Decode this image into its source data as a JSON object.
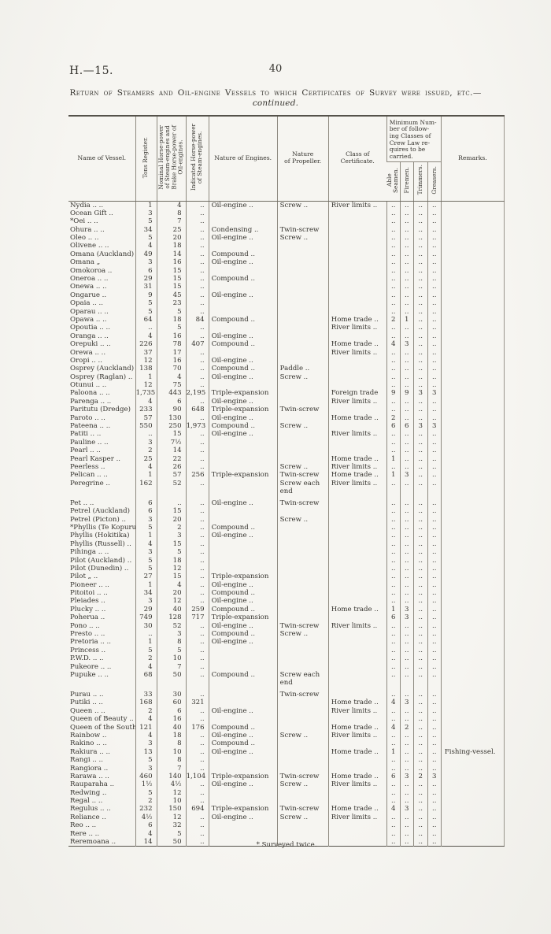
{
  "page": {
    "doc_ref": "H.—15.",
    "page_number": "40",
    "title_line1": "Return of Steamers and Oil-engine Vessels to which Certificates of Survey were",
    "title_line2_caps": "issued, etc.",
    "title_line2_italic": "—continued.",
    "footnote": "* Surveyed twice."
  },
  "table": {
    "headers": {
      "name": "Name of Vessel.",
      "tons": "Tons Register.",
      "nhp": "Nominal Horse-power\nof Steam-engines and\nBrake Horse-power of\nOil-engines.",
      "ihp": "Indicated Horse-power\nof Steam-engines.",
      "engines": "Nature of Engines.",
      "propeller": "Nature\nof Propeller.",
      "cert": "Class of\nCertificate.",
      "crew_group": "Minimum Num-\nber of follow-\ning Classes of\nCrew Law re-\nquires to be\ncarried.",
      "able_seamen": "Able\nSeamen.",
      "firemen": "Firemen.",
      "trimmers": "Trimmers.",
      "greasers": "Greasers.",
      "remarks": "Remarks."
    },
    "rows": [
      [
        "Nydia .. ..",
        "1",
        "4",
        "..",
        "Oil-engine ..",
        "Screw ..",
        "River limits ..",
        "..",
        "..",
        "..",
        "..",
        ""
      ],
      [
        "Ocean Gift ..",
        "3",
        "8",
        "..",
        "„",
        "„",
        "„",
        "..",
        "..",
        "..",
        "..",
        ""
      ],
      [
        "*Oei .. ..",
        "5",
        "7",
        "..",
        "„",
        "„",
        "„",
        "..",
        "..",
        "..",
        "..",
        ""
      ],
      [
        "Ohura .. ..",
        "34",
        "25",
        "..",
        "Condensing ..",
        "Twin-screw",
        "„",
        "..",
        "..",
        "..",
        "..",
        ""
      ],
      [
        "Oleo .. ..",
        "5",
        "20",
        "..",
        "Oil-engine ..",
        "Screw ..",
        "„",
        "..",
        "..",
        "..",
        "..",
        ""
      ],
      [
        "Olivene .. ..",
        "4",
        "18",
        "..",
        "„",
        "„",
        "„",
        "..",
        "..",
        "..",
        "..",
        ""
      ],
      [
        "Omana (Auckland)",
        "49",
        "14",
        "..",
        "Compound ..",
        "„",
        "„",
        "..",
        "..",
        "..",
        "..",
        ""
      ],
      [
        "Omana „",
        "3",
        "16",
        "..",
        "Oil-engine ..",
        "„",
        "„",
        "..",
        "..",
        "..",
        "..",
        ""
      ],
      [
        "Omokoroa ..",
        "6",
        "15",
        "..",
        "„",
        "„",
        "„",
        "..",
        "..",
        "..",
        "..",
        ""
      ],
      [
        "Oneroa .. ..",
        "29",
        "15",
        "..",
        "Compound ..",
        "„",
        "„",
        "..",
        "..",
        "..",
        "..",
        ""
      ],
      [
        "Onewa .. ..",
        "31",
        "15",
        "..",
        "„",
        "„",
        "„",
        "..",
        "..",
        "..",
        "..",
        ""
      ],
      [
        "Ongarue ..",
        "9",
        "45",
        "..",
        "Oil-engine ..",
        "„",
        "„",
        "..",
        "..",
        "..",
        "..",
        ""
      ],
      [
        "Opaia .. ..",
        "5",
        "23",
        "..",
        "„",
        "„",
        "„",
        "..",
        "..",
        "..",
        "..",
        ""
      ],
      [
        "Oparau .. ..",
        "5",
        "5",
        "..",
        "„",
        "„",
        "„",
        "..",
        "..",
        "..",
        "..",
        ""
      ],
      [
        "Opawa .. ..",
        "64",
        "18",
        "84",
        "Compound ..",
        "„",
        "Home trade ..",
        "2",
        "1",
        "..",
        "..",
        ""
      ],
      [
        "Opoutia .. ..",
        "..",
        "5",
        "..",
        "„",
        "„",
        "River limits ..",
        "..",
        "..",
        "..",
        "..",
        ""
      ],
      [
        "Oranga .. ..",
        "4",
        "16",
        "..",
        "Oil-engine ..",
        "„",
        "„",
        "..",
        "..",
        "..",
        "..",
        ""
      ],
      [
        "Orepuki .. ..",
        "226",
        "78",
        "407",
        "Compound ..",
        "„",
        "Home trade ..",
        "4",
        "3",
        "..",
        "..",
        ""
      ],
      [
        "Orewa .. ..",
        "37",
        "17",
        "..",
        "„",
        "„",
        "River limits ..",
        "..",
        "..",
        "..",
        "..",
        ""
      ],
      [
        "Oropi .. ..",
        "12",
        "16",
        "..",
        "Oil-engine ..",
        "„",
        "„",
        "..",
        "..",
        "..",
        "..",
        ""
      ],
      [
        "Osprey (Auckland)",
        "138",
        "70",
        "..",
        "Compound ..",
        "Paddle ..",
        "„",
        "..",
        "..",
        "..",
        "..",
        ""
      ],
      [
        "Osprey (Raglan) ..",
        "1",
        "4",
        "..",
        "Oil-engine ..",
        "Screw ..",
        "„",
        "..",
        "..",
        "..",
        "..",
        ""
      ],
      [
        "Otunui .. ..",
        "12",
        "75",
        "..",
        "„",
        "„",
        "„",
        "..",
        "..",
        "..",
        "..",
        ""
      ],
      [
        "Paloona .. ..",
        "1,735",
        "443",
        "2,195",
        "Triple-expansion",
        "„",
        "Foreign trade",
        "9",
        "9",
        "3",
        "3",
        ""
      ],
      [
        "Parenga .. ..",
        "4",
        "6",
        "..",
        "Oil-engine ..",
        "„",
        "River limits ..",
        "..",
        "..",
        "..",
        "..",
        ""
      ],
      [
        "Paritutu (Dredge)",
        "233",
        "90",
        "648",
        "Triple-expansion",
        "Twin-screw",
        "„",
        "..",
        "..",
        "..",
        "..",
        ""
      ],
      [
        "Paroto .. ..",
        "57",
        "130",
        "..",
        "Oil-engine ..",
        "„",
        "Home trade ..",
        "2",
        "..",
        "..",
        "..",
        ""
      ],
      [
        "Pateena .. ..",
        "550",
        "250",
        "1,973",
        "Compound ..",
        "Screw ..",
        "„",
        "6",
        "6",
        "3",
        "3",
        ""
      ],
      [
        "Patiti .. ..",
        "..",
        "15",
        "..",
        "Oil-engine ..",
        "„",
        "River limits ..",
        "..",
        "..",
        "..",
        "..",
        ""
      ],
      [
        "Pauline .. ..",
        "3",
        "7½",
        "..",
        "„",
        "„",
        "„",
        "..",
        "..",
        "..",
        "..",
        ""
      ],
      [
        "Pearl .. ..",
        "2",
        "14",
        "..",
        "„",
        "„",
        "„",
        "..",
        "..",
        "..",
        "..",
        ""
      ],
      [
        "Pearl Kasper ..",
        "25",
        "22",
        "..",
        "„",
        "„",
        "Home trade ..",
        "1",
        "..",
        "..",
        "..",
        ""
      ],
      [
        "Peerless ..",
        "4",
        "26",
        "..",
        "„",
        "Screw ..",
        "River limits ..",
        "..",
        "..",
        "..",
        "..",
        ""
      ],
      [
        "Pelican .. ..",
        "1",
        "57",
        "256",
        "Triple-expansion",
        "Twin-screw",
        "Home trade ..",
        "1",
        "3",
        "..",
        "..",
        ""
      ],
      [
        "Peregrine ..",
        "162",
        "52",
        "..",
        "„",
        "Screw each end",
        "River limits ..",
        "..",
        "..",
        "..",
        "..",
        ""
      ],
      [],
      [
        "Pet .. ..",
        "6",
        "..",
        "..",
        "Oil-engine ..",
        "Twin-screw",
        "„",
        "..",
        "..",
        "..",
        "..",
        ""
      ],
      [
        "Petrel (Auckland)",
        "6",
        "15",
        "..",
        "„",
        "„",
        "„",
        "..",
        "..",
        "..",
        "..",
        ""
      ],
      [
        "Petrel (Picton) ..",
        "3",
        "20",
        "..",
        "„",
        "Screw ..",
        "„",
        "..",
        "..",
        "..",
        "..",
        ""
      ],
      [
        "*Phyllis (Te Kopuru)",
        "5",
        "2",
        "..",
        "Compound ..",
        "„",
        "„",
        "..",
        "..",
        "..",
        "..",
        ""
      ],
      [
        "Phyllis (Hokitika)",
        "1",
        "3",
        "..",
        "Oil-engine ..",
        "„",
        "„",
        "..",
        "..",
        "..",
        "..",
        ""
      ],
      [
        "Phyllis (Russell) ..",
        "4",
        "15",
        "..",
        "„",
        "„",
        "„",
        "..",
        "..",
        "..",
        "..",
        ""
      ],
      [
        "Pihinga .. ..",
        "3",
        "5",
        "..",
        "„",
        "„",
        "„",
        "..",
        "..",
        "..",
        "..",
        ""
      ],
      [
        "Pilot (Auckland) ..",
        "5",
        "18",
        "..",
        "„",
        "„",
        "„",
        "..",
        "..",
        "..",
        "..",
        ""
      ],
      [
        "Pilot (Dunedin) ..",
        "5",
        "12",
        "..",
        "„",
        "„",
        "„",
        "..",
        "..",
        "..",
        "..",
        ""
      ],
      [
        "Pilot „ ..",
        "27",
        "15",
        "..",
        "Triple-expansion",
        "„",
        "„",
        "..",
        "..",
        "..",
        "..",
        ""
      ],
      [
        "Pioneer .. ..",
        "1",
        "4",
        "..",
        "Oil-engine ..",
        "„",
        "„",
        "..",
        "..",
        "..",
        "..",
        ""
      ],
      [
        "Pitoitoi .. ..",
        "34",
        "20",
        "..",
        "Compound ..",
        "„",
        "„",
        "..",
        "..",
        "..",
        "..",
        ""
      ],
      [
        "Pleiades ..",
        "3",
        "12",
        "..",
        "Oil-engine ..",
        "„",
        "„",
        "..",
        "..",
        "..",
        "..",
        ""
      ],
      [
        "Plucky .. ..",
        "29",
        "40",
        "259",
        "Compound ..",
        "„",
        "Home trade ..",
        "1",
        "3",
        "..",
        "..",
        ""
      ],
      [
        "Poherua ..",
        "749",
        "128",
        "717",
        "Triple-expansion",
        "„",
        "„",
        "6",
        "3",
        "..",
        "..",
        ""
      ],
      [
        "Pono .. ..",
        "30",
        "52",
        "..",
        "Oil-engine ..",
        "Twin-screw",
        "River limits ..",
        "..",
        "..",
        "..",
        "..",
        ""
      ],
      [
        "Presto .. ..",
        "..",
        "3",
        "..",
        "Compound ..",
        "Screw ..",
        "„",
        "..",
        "..",
        "..",
        "..",
        ""
      ],
      [
        "Pretoria .. ..",
        "1",
        "8",
        "..",
        "Oil-engine ..",
        "„",
        "„",
        "..",
        "..",
        "..",
        "..",
        ""
      ],
      [
        "Princess ..",
        "5",
        "5",
        "..",
        "„",
        "„",
        "„",
        "..",
        "..",
        "..",
        "..",
        ""
      ],
      [
        "P.W.D. .. ..",
        "2",
        "10",
        "..",
        "„",
        "„",
        "„",
        "..",
        "..",
        "..",
        "..",
        ""
      ],
      [
        "Pukeore .. ..",
        "4",
        "7",
        "..",
        "„",
        "„",
        "„",
        "..",
        "..",
        "..",
        "..",
        ""
      ],
      [
        "Pupuke .. ..",
        "68",
        "50",
        "..",
        "Compound ..",
        "Screw each end",
        "„",
        "..",
        "..",
        "..",
        "..",
        ""
      ],
      [],
      [
        "Purau .. ..",
        "33",
        "30",
        "..",
        "„",
        "Twin-screw",
        "„",
        "..",
        "..",
        "..",
        "..",
        ""
      ],
      [
        "Putiki .. ..",
        "168",
        "60",
        "321",
        "„",
        "„",
        "Home trade ..",
        "4",
        "3",
        "..",
        "..",
        ""
      ],
      [
        "Queen .. ..",
        "2",
        "6",
        "..",
        "Oil-engine ..",
        "„",
        "River limits ..",
        "..",
        "..",
        "..",
        "..",
        ""
      ],
      [
        "Queen of Beauty ..",
        "4",
        "16",
        "..",
        "„",
        "„",
        "„",
        "..",
        "..",
        "..",
        "..",
        ""
      ],
      [
        "Queen of the South",
        "121",
        "40",
        "176",
        "Compound ..",
        "„",
        "Home trade ..",
        "4",
        "2",
        "..",
        "..",
        ""
      ],
      [
        "Rainbow ..",
        "4",
        "18",
        "..",
        "Oil-engine ..",
        "Screw ..",
        "River limits ..",
        "..",
        "..",
        "..",
        "..",
        ""
      ],
      [
        "Rakino .. ..",
        "3",
        "8",
        "..",
        "Compound ..",
        "„",
        "„",
        "..",
        "..",
        "..",
        "..",
        ""
      ],
      [
        "Rakiura .. ..",
        "13",
        "10",
        "..",
        "Oil-engine ..",
        "„",
        "Home trade ..",
        "1",
        "..",
        "..",
        "..",
        "Fishing-vessel."
      ],
      [
        "Rangi .. ..",
        "5",
        "8",
        "..",
        "„",
        "„",
        "„",
        "..",
        "..",
        "..",
        "..",
        ""
      ],
      [
        "Rangiora ..",
        "3",
        "7",
        "..",
        "„",
        "„",
        "„",
        "..",
        "..",
        "..",
        "..",
        ""
      ],
      [
        "Rarawa .. ..",
        "460",
        "140",
        "1,104",
        "Triple-expansion",
        "Twin-screw",
        "Home trade ..",
        "6",
        "3",
        "2",
        "3",
        ""
      ],
      [
        "Rauparaha ..",
        "1½",
        "4½",
        "..",
        "Oil-engine ..",
        "Screw ..",
        "River limits ..",
        "..",
        "..",
        "..",
        "..",
        ""
      ],
      [
        "Redwing ..",
        "5",
        "12",
        "..",
        "„",
        "„",
        "„",
        "..",
        "..",
        "..",
        "..",
        ""
      ],
      [
        "Regal .. ..",
        "2",
        "10",
        "..",
        "„",
        "„",
        "„",
        "..",
        "..",
        "..",
        "..",
        ""
      ],
      [
        "Regulus .. ..",
        "232",
        "150",
        "694",
        "Triple-expansion",
        "Twin-screw",
        "Home trade ..",
        "4",
        "3",
        "..",
        "..",
        ""
      ],
      [
        "Reliance ..",
        "4½",
        "12",
        "..",
        "Oil-engine ..",
        "Screw ..",
        "River limits ..",
        "..",
        "..",
        "..",
        "..",
        ""
      ],
      [
        "Reo .. ..",
        "6",
        "32",
        "..",
        "„",
        "„",
        "„",
        "..",
        "..",
        "..",
        "..",
        ""
      ],
      [
        "Rere .. ..",
        "4",
        "5",
        "..",
        "„",
        "„",
        "„",
        "..",
        "..",
        "..",
        "..",
        ""
      ],
      [
        "Reremoana ..",
        "14",
        "50",
        "..",
        "„",
        "„",
        "„",
        "..",
        "..",
        "..",
        "..",
        ""
      ]
    ]
  }
}
